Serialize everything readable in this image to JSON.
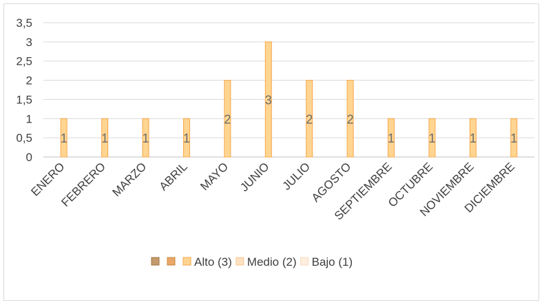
{
  "chart_data": {
    "type": "bar",
    "categories": [
      "ENERO",
      "FEBRERO",
      "MARZO",
      "ABRIL",
      "MAYO",
      "JUNIO",
      "JULIO",
      "AGOSTO",
      "SEPTIEMBRE",
      "OCTUBRE",
      "NOVIEMBRE",
      "DICIEMBRE"
    ],
    "values": [
      1,
      1,
      1,
      1,
      2,
      3,
      2,
      2,
      1,
      1,
      1,
      1
    ],
    "data_labels": [
      "1",
      "1",
      "1",
      "1",
      "2",
      "3",
      "2",
      "2",
      "1",
      "1",
      "1",
      "1"
    ],
    "ylim": [
      0,
      3.5
    ],
    "yticks": [
      "0",
      "0,5",
      "1",
      "1,5",
      "2",
      "2,5",
      "3",
      "3,5"
    ],
    "grid": true,
    "legend_position": "bottom",
    "bar_color": "#ffd591",
    "bar_border": "#f7a64a",
    "legend": [
      {
        "label": "",
        "fill": "#c49a6c",
        "border": "#9c7444"
      },
      {
        "label": "",
        "fill": "#e9a867",
        "border": "#c9843e"
      },
      {
        "label": "Alto (3)",
        "fill": "#ffd591",
        "border": "#f7a64a"
      },
      {
        "label": "Medio (2)",
        "fill": "#fde0bf",
        "border": "#f6c897"
      },
      {
        "label": "Bajo (1)",
        "fill": "#fdeede",
        "border": "#f8dbbf"
      }
    ]
  }
}
